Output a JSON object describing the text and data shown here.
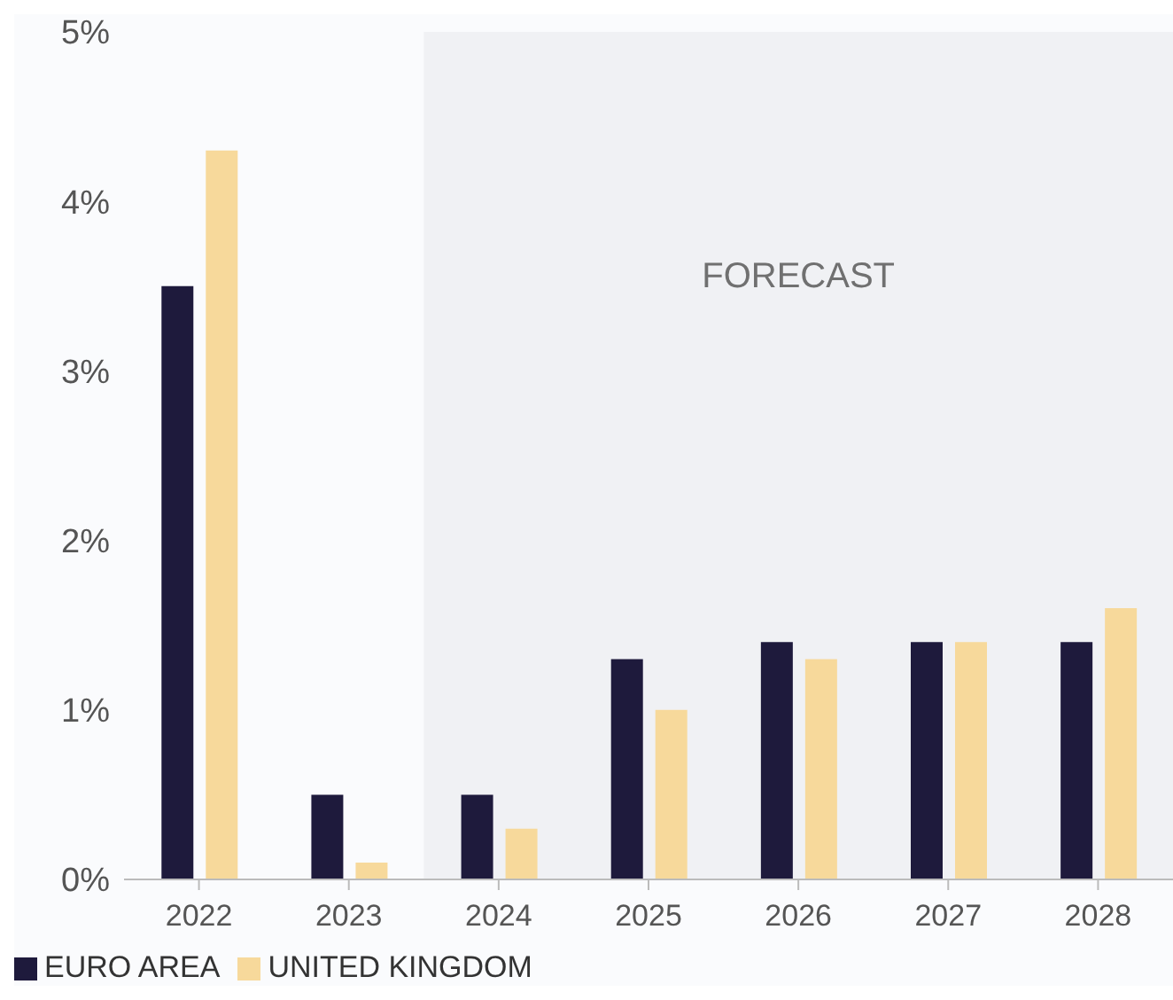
{
  "chart_data": {
    "type": "bar",
    "categories": [
      "2022",
      "2023",
      "2024",
      "2025",
      "2026",
      "2027",
      "2028"
    ],
    "series": [
      {
        "name": "EURO AREA",
        "color": "#1e1a3c",
        "values": [
          3.5,
          0.5,
          0.5,
          1.3,
          1.4,
          1.4,
          1.4
        ]
      },
      {
        "name": "UNITED KINGDOM",
        "color": "#f7d99b",
        "values": [
          4.3,
          0.1,
          0.3,
          1.0,
          1.3,
          1.4,
          1.6
        ]
      }
    ],
    "ylim": [
      0,
      5
    ],
    "yticks": [
      {
        "value": 0,
        "label": "0%"
      },
      {
        "value": 1,
        "label": "1%"
      },
      {
        "value": 2,
        "label": "2%"
      },
      {
        "value": 3,
        "label": "3%"
      },
      {
        "value": 4,
        "label": "4%"
      },
      {
        "value": 5,
        "label": "5%"
      }
    ],
    "bands": [
      {
        "axis": "x",
        "from": "2024",
        "to": "2028",
        "label": "FORECAST",
        "color": "#f0f1f4"
      }
    ],
    "grid": false,
    "legend": "bottom left"
  }
}
